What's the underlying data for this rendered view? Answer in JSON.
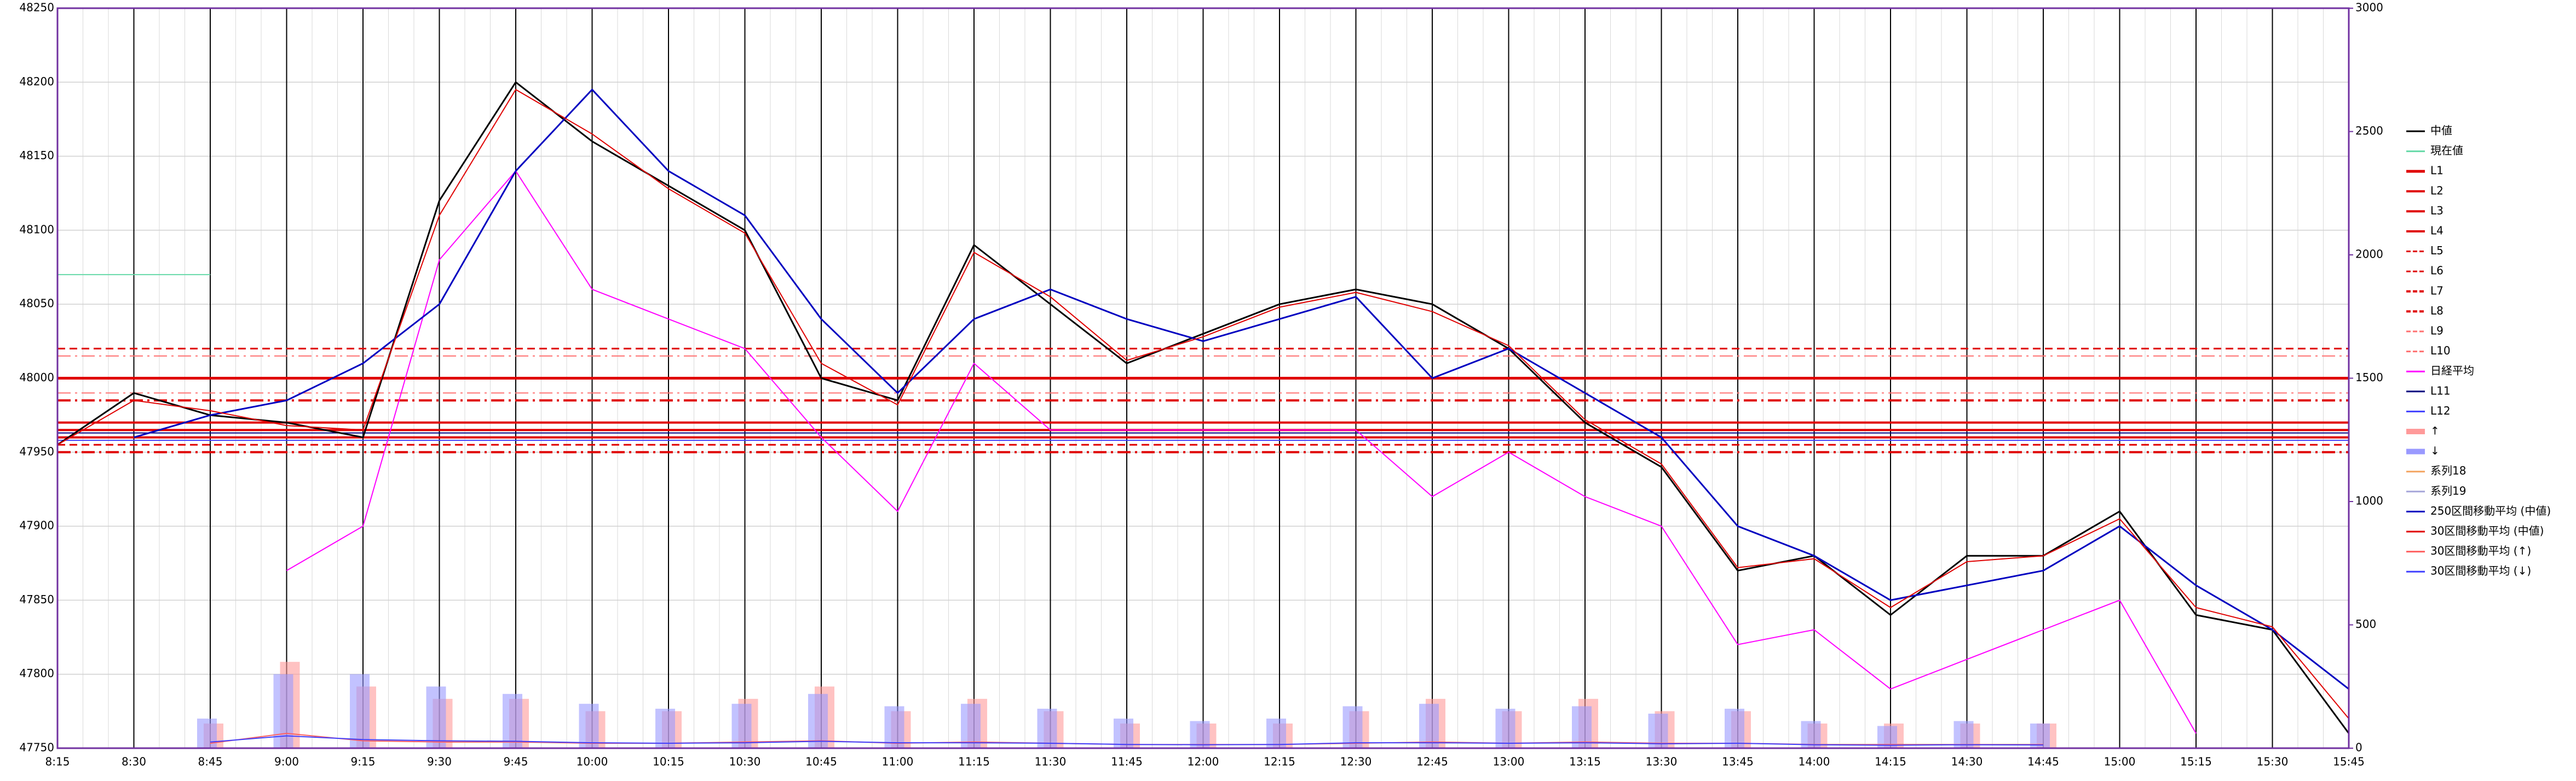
{
  "chart_data": {
    "type": "line",
    "categories": [
      "8:15",
      "8:30",
      "8:45",
      "9:00",
      "9:15",
      "9:30",
      "9:45",
      "10:00",
      "10:15",
      "10:30",
      "10:45",
      "11:00",
      "11:15",
      "11:30",
      "11:45",
      "12:00",
      "12:15",
      "12:30",
      "12:45",
      "13:00",
      "13:15",
      "13:30",
      "13:45",
      "14:00",
      "14:15",
      "14:30",
      "14:45",
      "15:00",
      "15:15",
      "15:30",
      "15:45"
    ],
    "ylim": [
      47750,
      48250
    ],
    "yticks": [
      47750,
      47800,
      47850,
      47900,
      47950,
      48000,
      48050,
      48100,
      48150,
      48200,
      48250
    ],
    "y2lim": [
      0,
      3000
    ],
    "y2ticks": [
      0,
      500,
      1000,
      1500,
      2000,
      2500,
      3000
    ],
    "grid": true,
    "legend": "right",
    "series": [
      {
        "name": "中値",
        "color": "#000000",
        "width": 3,
        "values": [
          47955,
          47990,
          47975,
          47970,
          47960,
          48120,
          48200,
          48160,
          48130,
          48100,
          48000,
          47985,
          48090,
          48050,
          48010,
          48030,
          48050,
          48060,
          48050,
          48020,
          47970,
          47940,
          47870,
          47880,
          47840,
          47880,
          47880,
          47910,
          47840,
          47830,
          47760
        ]
      },
      {
        "name": "現在値",
        "color": "#66d9a8",
        "width": 2,
        "values": [
          48070,
          48070,
          48070,
          null,
          null,
          null,
          null,
          null,
          null,
          null,
          null,
          null,
          null,
          null,
          null,
          null,
          null,
          null,
          null,
          null,
          null,
          null,
          null,
          null,
          null,
          null,
          null,
          null,
          null,
          null,
          null
        ]
      },
      {
        "name": "L1",
        "color": "#e00000",
        "width": 5,
        "dash": "solid",
        "level": 48000
      },
      {
        "name": "L2",
        "color": "#e00000",
        "width": 4,
        "dash": "solid",
        "level": 47970
      },
      {
        "name": "L3",
        "color": "#e00000",
        "width": 4,
        "dash": "solid",
        "level": 47965
      },
      {
        "name": "L4",
        "color": "#e00000",
        "width": 4,
        "dash": "solid",
        "level": 47960
      },
      {
        "name": "L5",
        "color": "#e00000",
        "width": 3,
        "dash": "dashed",
        "level": 47955
      },
      {
        "name": "L6",
        "color": "#e00000",
        "width": 3,
        "dash": "dashed",
        "level": 48020
      },
      {
        "name": "L7",
        "color": "#e00000",
        "width": 4,
        "dash": "dashdot",
        "level": 47985
      },
      {
        "name": "L8",
        "color": "#e00000",
        "width": 4,
        "dash": "dashdot",
        "level": 47950
      },
      {
        "name": "L9",
        "color": "#ff7070",
        "width": 2,
        "dash": "dashdot",
        "level": 48015
      },
      {
        "name": "L10",
        "color": "#ff7070",
        "width": 2,
        "dash": "dashdot",
        "level": 47990
      },
      {
        "name": "日経平均",
        "color": "#ff00ff",
        "width": 2,
        "values": [
          null,
          null,
          null,
          47870,
          47900,
          48080,
          48140,
          48060,
          48040,
          48020,
          47960,
          47910,
          48010,
          47965,
          47965,
          47965,
          47965,
          47965,
          47920,
          47950,
          47920,
          47900,
          47820,
          47830,
          47790,
          47810,
          47830,
          47850,
          47760,
          null,
          null
        ]
      },
      {
        "name": "L11",
        "color": "#000080",
        "width": 2,
        "dash": "solid",
        "level": 47963
      },
      {
        "name": "L12",
        "color": "#4040ff",
        "width": 2,
        "dash": "solid",
        "level": 47958
      },
      {
        "name": "↑",
        "color": "#ff9a9a",
        "axis": "y2",
        "kind": "bar",
        "values": [
          null,
          null,
          100,
          350,
          250,
          200,
          200,
          150,
          150,
          200,
          250,
          150,
          200,
          150,
          100,
          100,
          100,
          150,
          200,
          150,
          200,
          150,
          150,
          100,
          100,
          100,
          100,
          null,
          null,
          null,
          null
        ]
      },
      {
        "name": "↓",
        "color": "#9a9aff",
        "axis": "y2",
        "kind": "bar",
        "values": [
          null,
          null,
          120,
          300,
          300,
          250,
          220,
          180,
          160,
          180,
          220,
          170,
          180,
          160,
          120,
          110,
          120,
          170,
          180,
          160,
          170,
          140,
          160,
          110,
          90,
          110,
          100,
          null,
          null,
          null,
          null
        ]
      },
      {
        "name": "系列18",
        "color": "#f4a460",
        "width": 2,
        "values": [
          null,
          null,
          null,
          null,
          null,
          null,
          null,
          null,
          null,
          null,
          null,
          null,
          null,
          null,
          null,
          null,
          null,
          null,
          null,
          null,
          null,
          null,
          null,
          null,
          null,
          null,
          null,
          null,
          null,
          null,
          null
        ]
      },
      {
        "name": "系列19",
        "color": "#a6a6d9",
        "width": 2,
        "values": [
          null,
          null,
          null,
          null,
          null,
          null,
          null,
          null,
          null,
          null,
          null,
          null,
          null,
          null,
          null,
          null,
          null,
          null,
          null,
          null,
          null,
          null,
          null,
          null,
          null,
          null,
          null,
          null,
          null,
          null,
          null
        ]
      },
      {
        "name": "250区間移動平均 (中値)",
        "color": "#0000c0",
        "width": 3,
        "values": [
          null,
          47960,
          47975,
          47985,
          48010,
          48050,
          48140,
          48195,
          48140,
          48110,
          48040,
          47990,
          48040,
          48060,
          48040,
          48025,
          48040,
          48055,
          48000,
          48020,
          47990,
          47960,
          47900,
          47880,
          47850,
          47860,
          47870,
          47900,
          47860,
          47830,
          47790
        ]
      },
      {
        "name": "30区間移動平均 (中値)",
        "color": "#e00000",
        "width": 2,
        "values": [
          47955,
          47985,
          47978,
          47968,
          47965,
          48110,
          48195,
          48165,
          48128,
          48098,
          48010,
          47982,
          48085,
          48055,
          48012,
          48028,
          48048,
          48058,
          48045,
          48022,
          47972,
          47942,
          47872,
          47878,
          47845,
          47876,
          47880,
          47905,
          47845,
          47832,
          47770
        ]
      },
      {
        "name": "30区間移動平均 (↑)",
        "color": "#ff6060",
        "axis": "y2",
        "width": 2,
        "values": [
          null,
          null,
          20,
          60,
          30,
          25,
          25,
          20,
          20,
          25,
          30,
          20,
          25,
          20,
          15,
          15,
          15,
          20,
          25,
          20,
          25,
          20,
          20,
          15,
          15,
          15,
          15,
          null,
          null,
          null,
          null
        ]
      },
      {
        "name": "30区間移動平均 (↓)",
        "color": "#4040ff",
        "axis": "y2",
        "width": 2,
        "values": [
          null,
          null,
          25,
          50,
          35,
          30,
          28,
          22,
          20,
          22,
          28,
          22,
          22,
          20,
          15,
          14,
          15,
          22,
          22,
          20,
          22,
          18,
          20,
          14,
          12,
          14,
          13,
          null,
          null,
          null,
          null
        ]
      }
    ]
  }
}
